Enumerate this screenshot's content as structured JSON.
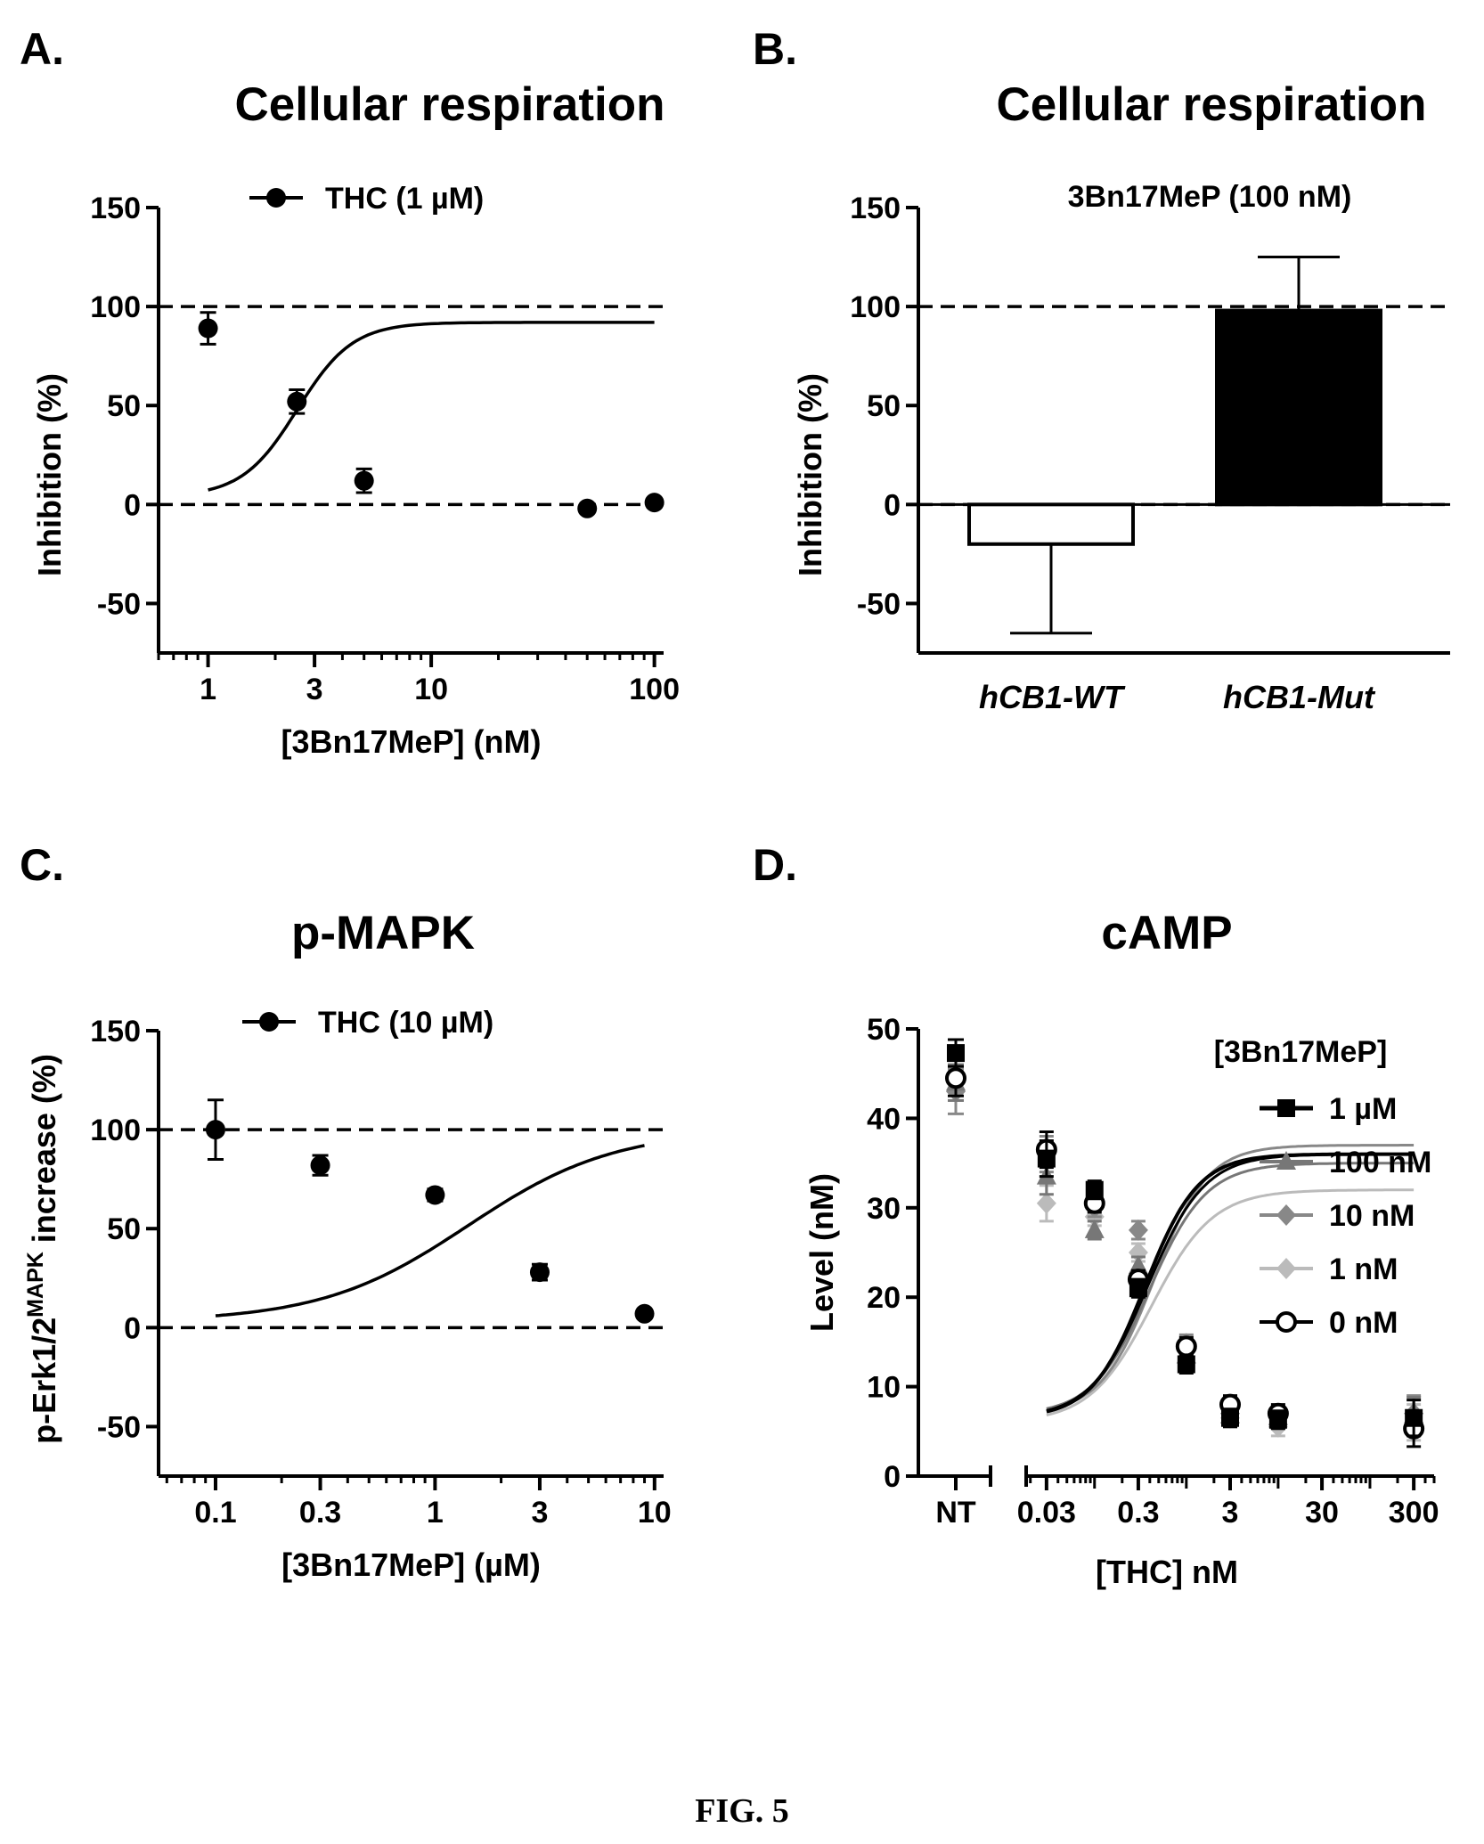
{
  "figure": {
    "caption": "FIG. 5"
  },
  "chart_data": [
    {
      "panel": "A.",
      "type": "scatter",
      "title": "Cellular respiration",
      "xlabel": "[3Bn17MeP] (nM)",
      "ylabel": "Inhibition (%)",
      "xscale": "log",
      "xlim": [
        0.6,
        110
      ],
      "ylim": [
        -75,
        150
      ],
      "xticks": [
        1,
        3,
        10,
        100
      ],
      "xtick_labels": [
        "1",
        "3",
        "10",
        "100"
      ],
      "yticks": [
        -50,
        0,
        50,
        100,
        150
      ],
      "ytick_labels": [
        "-50",
        "0",
        "50",
        "100",
        "150"
      ],
      "reference_lines": [
        0,
        100
      ],
      "legend": {
        "placement": "top",
        "entries": [
          "THC (1 µM)"
        ]
      },
      "series": [
        {
          "name": "THC (1 µM)",
          "x": [
            1,
            2.5,
            5,
            50,
            100
          ],
          "y": [
            89,
            52,
            12,
            -2,
            1
          ],
          "error": [
            8,
            6,
            6,
            0,
            0
          ],
          "fit": {
            "bottom": 4,
            "top": 92,
            "log_ic50": 0.4,
            "hill": -3.5
          }
        }
      ]
    },
    {
      "panel": "B.",
      "type": "bar",
      "title": "Cellular respiration",
      "subtitle": "3Bn17MeP (100 nM)",
      "xlabel": "",
      "ylabel": "Inhibition (%)",
      "ylim": [
        -75,
        150
      ],
      "yticks": [
        -50,
        0,
        50,
        100,
        150
      ],
      "ytick_labels": [
        "-50",
        "0",
        "50",
        "100",
        "150"
      ],
      "reference_lines": [
        0,
        100
      ],
      "categories": [
        "hCB1-WT",
        "hCB1-Mut"
      ],
      "values": [
        -20,
        98
      ],
      "errors": [
        45,
        27
      ],
      "bar_fills": [
        "#ffffff",
        "#000000"
      ]
    },
    {
      "panel": "C.",
      "type": "scatter",
      "title": "p-MAPK",
      "xlabel": "[3Bn17MeP] (µM)",
      "ylabel_part1": "p-Erk1/2",
      "ylabel_sup": "MAPK",
      "ylabel_part2": "increase (%)",
      "xscale": "log",
      "xlim": [
        0.055,
        11
      ],
      "ylim": [
        -75,
        150
      ],
      "xticks": [
        0.1,
        0.3,
        1,
        3,
        10
      ],
      "xtick_labels": [
        "0.1",
        "0.3",
        "1",
        "3",
        "10"
      ],
      "yticks": [
        -50,
        0,
        50,
        100,
        150
      ],
      "ytick_labels": [
        "-50",
        "0",
        "50",
        "100",
        "150"
      ],
      "reference_lines": [
        0,
        100
      ],
      "legend": {
        "placement": "top",
        "entries": [
          "THC (10 µM)"
        ]
      },
      "series": [
        {
          "name": "THC (10 µM)",
          "x": [
            0.1,
            0.3,
            1,
            3,
            9
          ],
          "y": [
            100,
            82,
            67,
            28,
            7
          ],
          "error": [
            15,
            5,
            3,
            4,
            0
          ],
          "fit": {
            "bottom": 3,
            "top": 100,
            "log_ic50": 0.15,
            "hill": -1.3
          }
        }
      ]
    },
    {
      "panel": "D.",
      "type": "line",
      "title": "cAMP",
      "xlabel": "[THC] nM",
      "ylabel": "Level (nM)",
      "xscale": "log",
      "xlim": [
        0.018,
        500
      ],
      "ylim": [
        0,
        50
      ],
      "xticks": [
        0.03,
        0.3,
        3,
        30,
        300
      ],
      "xtick_labels": [
        "0.03",
        "0.3",
        "3",
        "30",
        "300"
      ],
      "nt_label": "NT",
      "yticks": [
        0,
        10,
        20,
        30,
        40,
        50
      ],
      "ytick_labels": [
        "0",
        "10",
        "20",
        "30",
        "40",
        "50"
      ],
      "legend": {
        "placement": "right",
        "title": "[3Bn17MeP]",
        "entries": [
          "1 µM",
          "100 nM",
          "10 nM",
          "1 nM",
          "0 nM"
        ]
      },
      "x": [
        0.03,
        0.1,
        0.3,
        1,
        3,
        10,
        300
      ],
      "series": [
        {
          "name": "1 µM",
          "color": "#000000",
          "marker": "square",
          "nt": 47.3,
          "nt_err": 1.5,
          "y": [
            35.5,
            32,
            21,
            12.5,
            6.5,
            6.3,
            6.5
          ],
          "fit": {
            "bottom": 6.5,
            "top": 36,
            "log_ic50": -0.45,
            "hill": -1.5
          }
        },
        {
          "name": "100 nM",
          "color": "#777777",
          "marker": "triangle",
          "nt": 44,
          "nt_err": 2,
          "y": [
            33.5,
            27.5,
            23.5,
            13.5,
            6.8,
            6.6,
            6.8
          ],
          "fit": {
            "bottom": 6.8,
            "top": 35,
            "log_ic50": -0.4,
            "hill": -1.4
          }
        },
        {
          "name": "10 nM",
          "color": "#888888",
          "marker": "diamond",
          "nt": 43,
          "nt_err": 2.5,
          "y": [
            36,
            30,
            27.5,
            14.8,
            7,
            6.8,
            7
          ],
          "fit": {
            "bottom": 7,
            "top": 37,
            "log_ic50": -0.35,
            "hill": -1.5
          }
        },
        {
          "name": "1 nM",
          "color": "#bbbbbb",
          "marker": "diamond",
          "nt": 44,
          "nt_err": 2,
          "y": [
            30.5,
            29,
            25,
            14,
            6.5,
            5.5,
            6
          ],
          "fit": {
            "bottom": 6,
            "top": 32,
            "log_ic50": -0.38,
            "hill": -1.3
          }
        },
        {
          "name": "0 nM",
          "color": "#000000",
          "marker": "circle-open",
          "nt": 44.5,
          "nt_err": 2,
          "y": [
            36.5,
            30.5,
            22,
            14.5,
            8,
            7,
            5.3
          ],
          "fit": {
            "bottom": 6.5,
            "top": 36,
            "log_ic50": -0.42,
            "hill": -1.4
          }
        }
      ]
    }
  ]
}
